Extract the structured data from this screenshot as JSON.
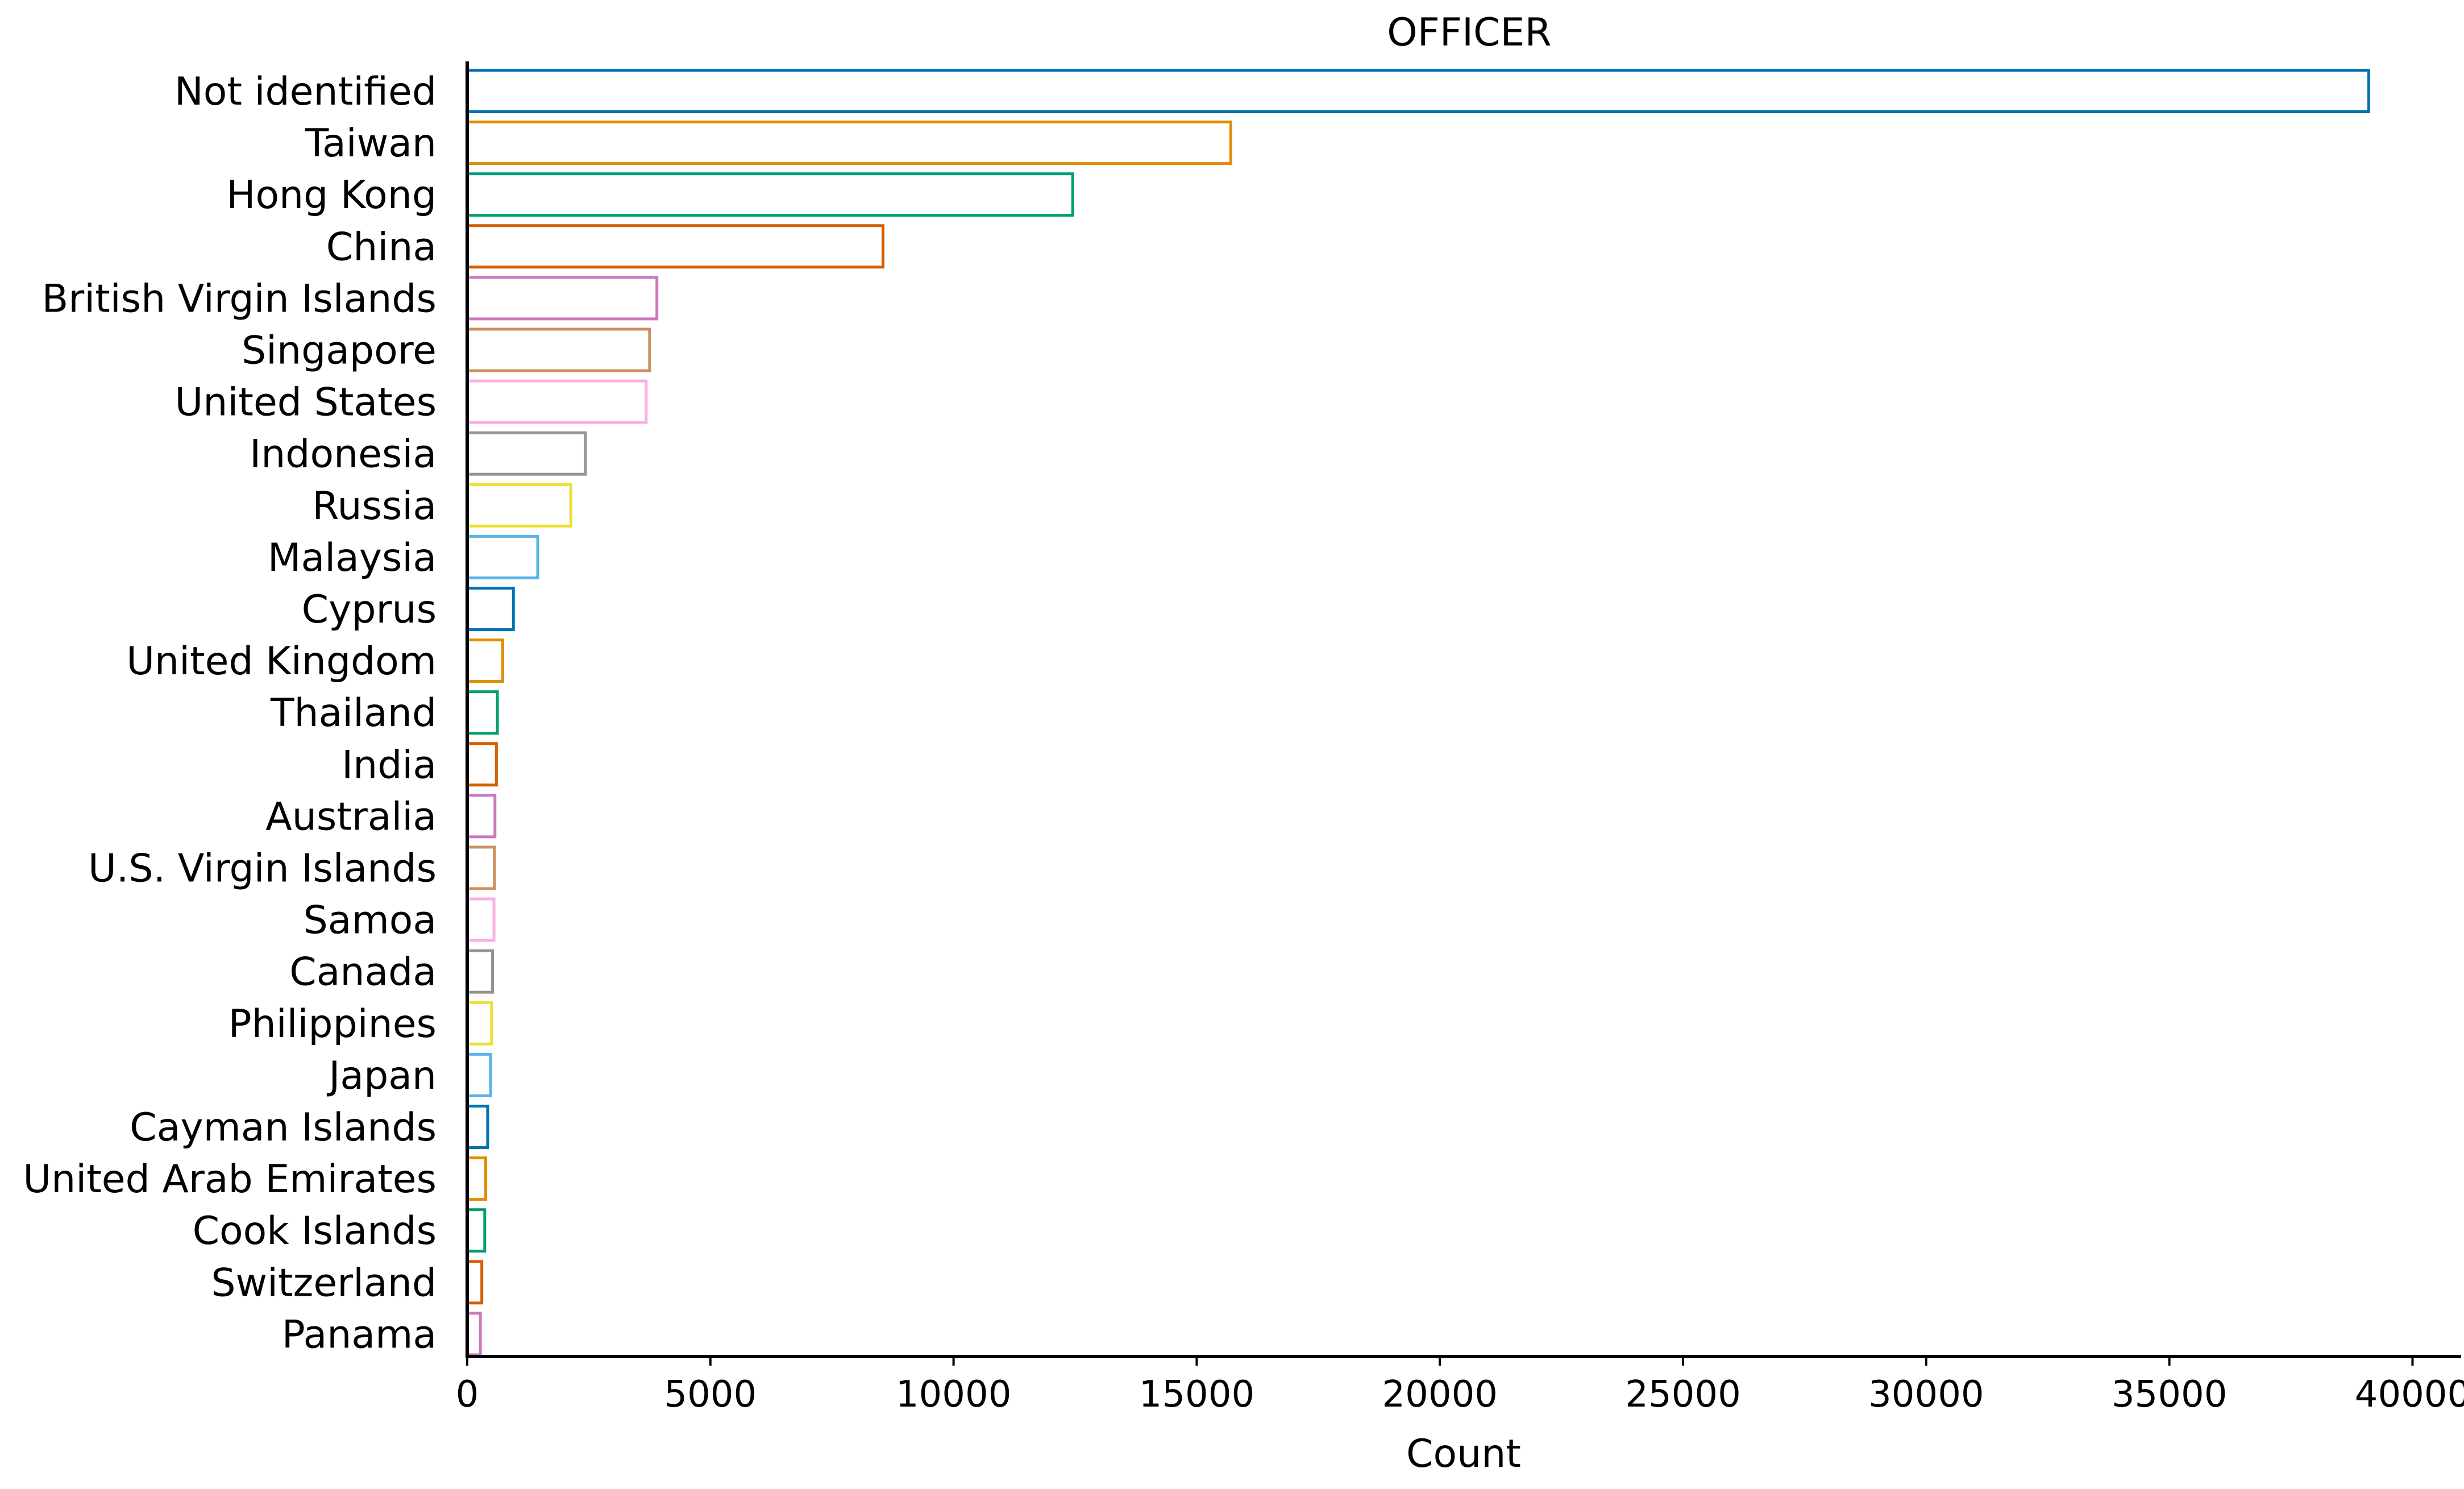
{
  "chart_data": {
    "type": "bar",
    "orientation": "horizontal",
    "title": "OFFICER",
    "xlabel": "Count",
    "ylabel": "",
    "xlim": [
      0,
      41000
    ],
    "xticks": [
      0,
      5000,
      10000,
      15000,
      20000,
      25000,
      30000,
      35000,
      40000
    ],
    "grid": false,
    "legend": "none",
    "bar_style": "outline",
    "categories": [
      "Not identified",
      "Taiwan",
      "Hong Kong",
      "China",
      "British Virgin Islands",
      "Singapore",
      "United States",
      "Indonesia",
      "Russia",
      "Malaysia",
      "Cyprus",
      "United Kingdom",
      "Thailand",
      "India",
      "Australia",
      "U.S. Virgin Islands",
      "Samoa",
      "Canada",
      "Philippines",
      "Japan",
      "Cayman Islands",
      "United Arab Emirates",
      "Cook Islands",
      "Switzerland",
      "Panama"
    ],
    "values": [
      39100,
      15700,
      12450,
      8550,
      3900,
      3750,
      3680,
      2430,
      2130,
      1450,
      950,
      730,
      620,
      600,
      570,
      560,
      550,
      520,
      500,
      480,
      420,
      380,
      360,
      300,
      270
    ],
    "colors": [
      "#0173b2",
      "#de8f05",
      "#029e73",
      "#d55e00",
      "#cc78bc",
      "#ca9161",
      "#fbafe4",
      "#949494",
      "#ece133",
      "#56b4e9"
    ]
  }
}
